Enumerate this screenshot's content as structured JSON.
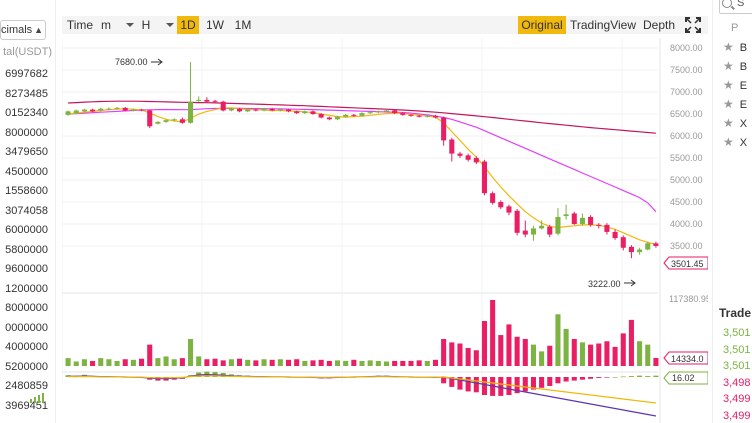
{
  "left_panel": {
    "decimals_label": "cimals",
    "total_header": "tal(USDT)",
    "rows": [
      "6997682",
      "8273485",
      "0152340",
      "8000000",
      "3479650",
      "4500000",
      "1558600",
      "3074058",
      "6000000",
      "5800000",
      "9600000",
      "1200000",
      "8000000",
      "0000000",
      "4000000",
      "5200000",
      "2480859",
      "3969451"
    ]
  },
  "toolbar": {
    "time": "Time",
    "minute": "m",
    "hour": "H",
    "day": "1D",
    "week": "1W",
    "month": "1M",
    "original": "Original",
    "tradingview": "TradingView",
    "depth": "Depth",
    "expand_icon": "expand-icon"
  },
  "price_axis": [
    "8000.00",
    "7500.00",
    "7000.00",
    "6500.00",
    "6000.00",
    "5500.00",
    "5000.00",
    "4500.00",
    "4000.00",
    "3500.00"
  ],
  "annotations": {
    "high_label": "7680.00",
    "low_label": "3222.00",
    "last_price": "3501.45",
    "volume_max": "117380.95",
    "volume_last": "14334.0",
    "macd_last": "16.02"
  },
  "colors": {
    "up": "#7cb342",
    "down": "#e91e63",
    "ma_slow": "#c2185b",
    "ma_mid": "#e040fb",
    "ma_fast": "#f0b90b",
    "accent": "#f0b90b"
  },
  "chart_data": {
    "type": "candlestick",
    "price_ylim": [
      3000,
      8000
    ],
    "candles": [
      {
        "o": 6480,
        "c": 6560,
        "h": 6580,
        "l": 6460
      },
      {
        "o": 6520,
        "c": 6580,
        "h": 6600,
        "l": 6500
      },
      {
        "o": 6560,
        "c": 6600,
        "h": 6620,
        "l": 6540
      },
      {
        "o": 6600,
        "c": 6560,
        "h": 6620,
        "l": 6540
      },
      {
        "o": 6580,
        "c": 6620,
        "h": 6640,
        "l": 6560
      },
      {
        "o": 6600,
        "c": 6620,
        "h": 6650,
        "l": 6580
      },
      {
        "o": 6620,
        "c": 6640,
        "h": 6660,
        "l": 6600
      },
      {
        "o": 6640,
        "c": 6580,
        "h": 6660,
        "l": 6560
      },
      {
        "o": 6580,
        "c": 6600,
        "h": 6620,
        "l": 6560
      },
      {
        "o": 6600,
        "c": 6580,
        "h": 6620,
        "l": 6560
      },
      {
        "o": 6580,
        "c": 6220,
        "h": 6600,
        "l": 6180
      },
      {
        "o": 6280,
        "c": 6320,
        "h": 6340,
        "l": 6260
      },
      {
        "o": 6320,
        "c": 6360,
        "h": 6380,
        "l": 6300
      },
      {
        "o": 6360,
        "c": 6380,
        "h": 6400,
        "l": 6340
      },
      {
        "o": 6380,
        "c": 6300,
        "h": 6420,
        "l": 6280
      },
      {
        "o": 6300,
        "c": 6780,
        "h": 7680,
        "l": 6280
      },
      {
        "o": 6800,
        "c": 6820,
        "h": 6900,
        "l": 6780
      },
      {
        "o": 6820,
        "c": 6780,
        "h": 6880,
        "l": 6760
      },
      {
        "o": 6800,
        "c": 6780,
        "h": 6820,
        "l": 6760
      },
      {
        "o": 6780,
        "c": 6580,
        "h": 6800,
        "l": 6560
      },
      {
        "o": 6580,
        "c": 6620,
        "h": 6640,
        "l": 6560
      },
      {
        "o": 6620,
        "c": 6560,
        "h": 6640,
        "l": 6540
      },
      {
        "o": 6560,
        "c": 6600,
        "h": 6620,
        "l": 6540
      },
      {
        "o": 6600,
        "c": 6580,
        "h": 6620,
        "l": 6560
      },
      {
        "o": 6580,
        "c": 6620,
        "h": 6640,
        "l": 6560
      },
      {
        "o": 6620,
        "c": 6580,
        "h": 6640,
        "l": 6560
      },
      {
        "o": 6580,
        "c": 6600,
        "h": 6620,
        "l": 6560
      },
      {
        "o": 6600,
        "c": 6560,
        "h": 6620,
        "l": 6540
      },
      {
        "o": 6560,
        "c": 6520,
        "h": 6580,
        "l": 6500
      },
      {
        "o": 6520,
        "c": 6560,
        "h": 6580,
        "l": 6500
      },
      {
        "o": 6560,
        "c": 6500,
        "h": 6580,
        "l": 6480
      },
      {
        "o": 6500,
        "c": 6420,
        "h": 6520,
        "l": 6400
      },
      {
        "o": 6420,
        "c": 6380,
        "h": 6440,
        "l": 6360
      },
      {
        "o": 6380,
        "c": 6440,
        "h": 6460,
        "l": 6360
      },
      {
        "o": 6440,
        "c": 6480,
        "h": 6500,
        "l": 6420
      },
      {
        "o": 6480,
        "c": 6460,
        "h": 6500,
        "l": 6440
      },
      {
        "o": 6460,
        "c": 6520,
        "h": 6540,
        "l": 6440
      },
      {
        "o": 6520,
        "c": 6540,
        "h": 6560,
        "l": 6500
      },
      {
        "o": 6540,
        "c": 6560,
        "h": 6580,
        "l": 6520
      },
      {
        "o": 6560,
        "c": 6580,
        "h": 6600,
        "l": 6540
      },
      {
        "o": 6580,
        "c": 6520,
        "h": 6600,
        "l": 6500
      },
      {
        "o": 6520,
        "c": 6480,
        "h": 6540,
        "l": 6460
      },
      {
        "o": 6480,
        "c": 6460,
        "h": 6500,
        "l": 6440
      },
      {
        "o": 6460,
        "c": 6440,
        "h": 6480,
        "l": 6420
      },
      {
        "o": 6440,
        "c": 6460,
        "h": 6480,
        "l": 6420
      },
      {
        "o": 6460,
        "c": 6420,
        "h": 6480,
        "l": 6400
      },
      {
        "o": 6420,
        "c": 5900,
        "h": 6440,
        "l": 5780
      },
      {
        "o": 5920,
        "c": 5600,
        "h": 5960,
        "l": 5420
      },
      {
        "o": 5600,
        "c": 5550,
        "h": 5640,
        "l": 5500
      },
      {
        "o": 5560,
        "c": 5460,
        "h": 5600,
        "l": 5420
      },
      {
        "o": 5500,
        "c": 5400,
        "h": 5540,
        "l": 5360
      },
      {
        "o": 5420,
        "c": 4700,
        "h": 5460,
        "l": 4650
      },
      {
        "o": 4700,
        "c": 4480,
        "h": 4740,
        "l": 4440
      },
      {
        "o": 4500,
        "c": 4380,
        "h": 4540,
        "l": 4340
      },
      {
        "o": 4400,
        "c": 4260,
        "h": 4440,
        "l": 4200
      },
      {
        "o": 4300,
        "c": 3800,
        "h": 4340,
        "l": 3740
      },
      {
        "o": 3850,
        "c": 3760,
        "h": 4080,
        "l": 3700
      },
      {
        "o": 3760,
        "c": 3900,
        "h": 3960,
        "l": 3620
      },
      {
        "o": 3900,
        "c": 3960,
        "h": 4080,
        "l": 3880
      },
      {
        "o": 3940,
        "c": 3760,
        "h": 3980,
        "l": 3700
      },
      {
        "o": 3780,
        "c": 4160,
        "h": 4360,
        "l": 3740
      },
      {
        "o": 4180,
        "c": 4220,
        "h": 4440,
        "l": 4100
      },
      {
        "o": 4240,
        "c": 4000,
        "h": 4280,
        "l": 3980
      },
      {
        "o": 4000,
        "c": 4140,
        "h": 4240,
        "l": 3960
      },
      {
        "o": 4160,
        "c": 3980,
        "h": 4200,
        "l": 3940
      },
      {
        "o": 3980,
        "c": 3960,
        "h": 4020,
        "l": 3900
      },
      {
        "o": 3980,
        "c": 3820,
        "h": 4020,
        "l": 3760
      },
      {
        "o": 3820,
        "c": 3680,
        "h": 3880,
        "l": 3640
      },
      {
        "o": 3700,
        "c": 3460,
        "h": 3740,
        "l": 3400
      },
      {
        "o": 3480,
        "c": 3360,
        "h": 3520,
        "l": 3222
      },
      {
        "o": 3360,
        "c": 3420,
        "h": 3460,
        "l": 3300
      },
      {
        "o": 3420,
        "c": 3560,
        "h": 3600,
        "l": 3400
      },
      {
        "o": 3560,
        "c": 3501,
        "h": 3600,
        "l": 3460
      }
    ],
    "volume_ylim": [
      0,
      117380.95
    ],
    "volumes": [
      14000,
      8000,
      12000,
      9000,
      14000,
      12000,
      9000,
      12000,
      11000,
      13000,
      38000,
      14000,
      17000,
      12000,
      14000,
      48000,
      17000,
      12000,
      13000,
      10000,
      12000,
      13000,
      11000,
      10000,
      12000,
      11000,
      12000,
      11000,
      12000,
      9000,
      10000,
      11000,
      9000,
      10000,
      9000,
      11000,
      9000,
      10000,
      9000,
      8000,
      9000,
      9000,
      9000,
      10000,
      9000,
      11000,
      48000,
      42000,
      40000,
      32000,
      28000,
      80000,
      117380,
      55000,
      74000,
      52000,
      48000,
      38000,
      26000,
      36000,
      92000,
      66000,
      48000,
      42000,
      38000,
      40000,
      44000,
      34000,
      58000,
      82000,
      44000,
      38000,
      14334
    ],
    "ma_slow": [
      6750,
      6760,
      6770,
      6778,
      6783,
      6788,
      6790,
      6791,
      6790,
      6788,
      6785,
      6780,
      6775,
      6770,
      6766,
      6764,
      6760,
      6756,
      6752,
      6748,
      6742,
      6736,
      6730,
      6724,
      6718,
      6712,
      6706,
      6700,
      6694,
      6688,
      6680,
      6672,
      6664,
      6656,
      6648,
      6640,
      6632,
      6624,
      6616,
      6608,
      6600,
      6592,
      6580,
      6568,
      6555,
      6542,
      6528,
      6510,
      6492,
      6474,
      6456,
      6438,
      6420,
      6400,
      6380,
      6360,
      6340,
      6320,
      6300,
      6282,
      6264,
      6246,
      6228,
      6210,
      6192,
      6176,
      6160,
      6144,
      6128,
      6112,
      6096,
      6080,
      6064
    ],
    "ma_mid": [
      6500,
      6510,
      6520,
      6530,
      6540,
      6550,
      6560,
      6570,
      6580,
      6590,
      6595,
      6600,
      6602,
      6600,
      6598,
      6600,
      6610,
      6620,
      6625,
      6628,
      6630,
      6628,
      6625,
      6622,
      6620,
      6618,
      6615,
      6612,
      6610,
      6605,
      6600,
      6594,
      6588,
      6582,
      6576,
      6570,
      6564,
      6558,
      6552,
      6546,
      6540,
      6534,
      6520,
      6500,
      6480,
      6450,
      6420,
      6380,
      6320,
      6260,
      6200,
      6120,
      6040,
      5960,
      5880,
      5800,
      5720,
      5640,
      5560,
      5480,
      5400,
      5320,
      5240,
      5160,
      5080,
      5000,
      4920,
      4840,
      4760,
      4680,
      4600,
      4480,
      4280
    ],
    "ma_fast": [
      6500,
      6520,
      6540,
      6560,
      6580,
      6600,
      6610,
      6620,
      6610,
      6590,
      6520,
      6440,
      6380,
      6340,
      6320,
      6400,
      6500,
      6560,
      6600,
      6640,
      6640,
      6620,
      6600,
      6600,
      6590,
      6580,
      6580,
      6570,
      6560,
      6550,
      6530,
      6500,
      6470,
      6440,
      6430,
      6440,
      6450,
      6470,
      6490,
      6510,
      6520,
      6510,
      6490,
      6470,
      6450,
      6430,
      6300,
      6100,
      5900,
      5700,
      5520,
      5300,
      5060,
      4840,
      4640,
      4460,
      4280,
      4140,
      4020,
      3940,
      3920,
      3940,
      3960,
      3980,
      3980,
      3970,
      3930,
      3880,
      3800,
      3720,
      3640,
      3580,
      3540
    ],
    "macd_hist": [
      4,
      3,
      5,
      3,
      2,
      2,
      1,
      0,
      -1,
      -2,
      -6,
      -8,
      -8,
      -6,
      -4,
      4,
      10,
      12,
      11,
      9,
      6,
      4,
      3,
      2,
      2,
      1,
      1,
      0,
      -1,
      -1,
      -2,
      -3,
      -3,
      -2,
      -1,
      0,
      1,
      2,
      3,
      3,
      2,
      1,
      0,
      -1,
      -1,
      -2,
      -14,
      -22,
      -28,
      -32,
      -34,
      -40,
      -42,
      -42,
      -40,
      -36,
      -32,
      -28,
      -24,
      -20,
      -14,
      -10,
      -8,
      -6,
      -4,
      -2,
      -1,
      0,
      1,
      2,
      3,
      2,
      3
    ],
    "macd_ylim": [
      -50,
      20
    ]
  }
}
